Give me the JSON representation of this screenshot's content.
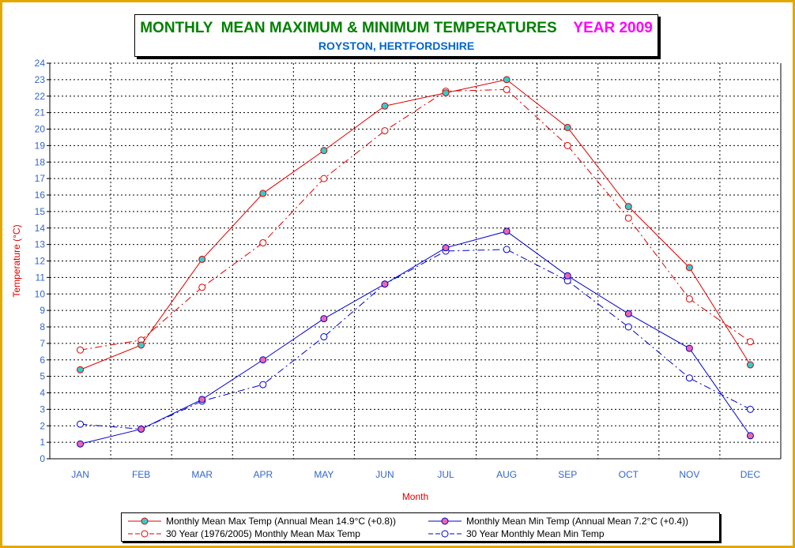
{
  "title": {
    "main": "MONTHLY  MEAN MAXIMUM & MINIMUM TEMPERATURES",
    "year": "YEAR 2009",
    "subtitle": "ROYSTON, HERTFORDSHIRE",
    "main_color": "#008000",
    "year_color": "#ff00ff",
    "subtitle_color": "#0066cc"
  },
  "chart_data": {
    "type": "line",
    "xlabel": "Month",
    "ylabel": "Temperature (°C)",
    "ylim": [
      0,
      24
    ],
    "yticks": [
      "0",
      "1",
      "2",
      "3",
      "4",
      "5",
      "6",
      "7",
      "8",
      "9",
      "10",
      "11",
      "12",
      "13",
      "14",
      "15",
      "16",
      "17",
      "18",
      "19",
      "20",
      "21",
      "22",
      "23",
      "24"
    ],
    "categories": [
      "JAN",
      "FEB",
      "MAR",
      "APR",
      "MAY",
      "JUN",
      "JUL",
      "AUG",
      "SEP",
      "OCT",
      "NOV",
      "DEC"
    ],
    "grid": true,
    "legend_position": "bottom",
    "series": [
      {
        "name": "Monthly Mean Max Temp (Annual Mean 14.9°C (+0.8))",
        "values": [
          5.4,
          6.9,
          12.1,
          16.1,
          18.7,
          21.4,
          22.2,
          23.0,
          20.1,
          15.3,
          11.6,
          5.7
        ],
        "color": "#dd0000",
        "marker_fill": "#33cccc",
        "dash": "solid"
      },
      {
        "name": "Monthly Mean Min Temp (Annual Mean 7.2°C (+0.4))",
        "values": [
          0.9,
          1.8,
          3.6,
          6.0,
          8.5,
          10.6,
          12.8,
          13.8,
          11.1,
          8.8,
          6.7,
          1.4
        ],
        "color": "#0000cc",
        "marker_fill": "#ee66aa",
        "dash": "solid"
      },
      {
        "name": "30 Year (1976/2005) Monthly Mean Max Temp",
        "values": [
          6.6,
          7.2,
          10.4,
          13.1,
          17.0,
          19.9,
          22.3,
          22.4,
          19.0,
          14.6,
          9.7,
          7.1
        ],
        "color": "#dd0000",
        "marker_fill": "#ffffff",
        "dash": "dashdot"
      },
      {
        "name": "30 Year Monthly Mean Min Temp",
        "values": [
          2.1,
          1.8,
          3.5,
          4.5,
          7.4,
          10.6,
          12.6,
          12.7,
          10.8,
          8.0,
          4.9,
          3.0
        ],
        "color": "#0000cc",
        "marker_fill": "#ffffff",
        "dash": "dashdot"
      }
    ]
  },
  "colors": {
    "frame_border": "#e2a800",
    "axis_text": "#3366cc",
    "axis_title": "#dd0000"
  }
}
